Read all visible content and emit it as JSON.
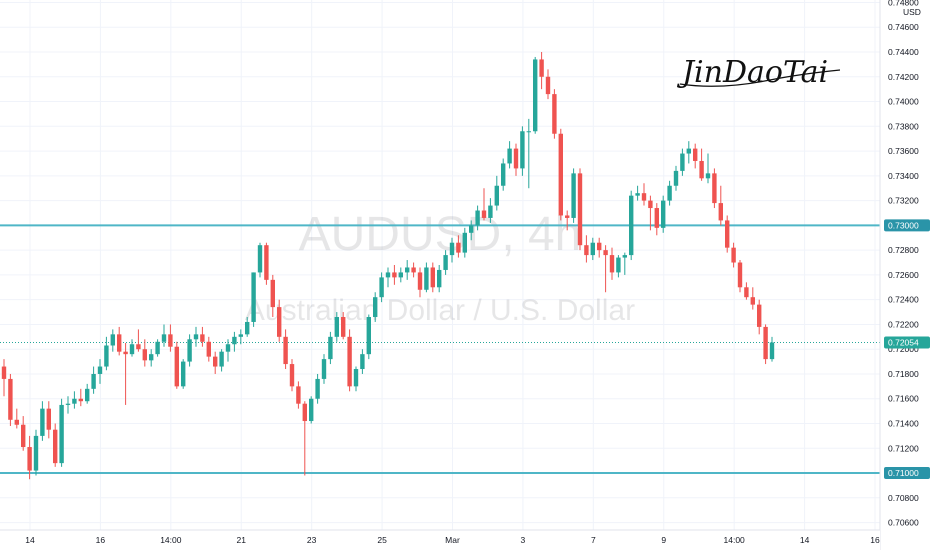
{
  "chart_data": {
    "type": "candlestick",
    "watermark_symbol": "AUDUSD, 4h",
    "watermark_description": "Australian Dollar / U.S. Dollar",
    "signature": "JinDaoTai",
    "currency": "USD",
    "y_axis": {
      "range": [
        0.7054,
        0.7482
      ],
      "ticks": [
        "0.70600",
        "0.70800",
        "0.71000",
        "0.71200",
        "0.71400",
        "0.71600",
        "0.71800",
        "0.72000",
        "0.72200",
        "0.72400",
        "0.72600",
        "0.72800",
        "0.73000",
        "0.73200",
        "0.73400",
        "0.73600",
        "0.73800",
        "0.74000",
        "0.74200",
        "0.74400",
        "0.74600",
        "0.74800"
      ]
    },
    "x_axis": {
      "labels": [
        "14",
        "16",
        "14:00",
        "21",
        "23",
        "25",
        "Mar",
        "3",
        "7",
        "9",
        "14:00",
        "14",
        "16"
      ]
    },
    "horizontal_levels": [
      {
        "value": 0.73,
        "label": "0.73000"
      },
      {
        "value": 0.71,
        "label": "0.71000"
      }
    ],
    "last_price": {
      "value": 0.72054,
      "label": "0.72054"
    },
    "candles": [
      [
        0.7186,
        0.7192,
        0.7162,
        0.7176
      ],
      [
        0.7176,
        0.718,
        0.7138,
        0.7143
      ],
      [
        0.7143,
        0.7152,
        0.7136,
        0.7139
      ],
      [
        0.7139,
        0.7146,
        0.7118,
        0.7121
      ],
      [
        0.7121,
        0.713,
        0.7095,
        0.7102
      ],
      [
        0.7102,
        0.7135,
        0.7098,
        0.713
      ],
      [
        0.713,
        0.7158,
        0.7126,
        0.7152
      ],
      [
        0.7152,
        0.7158,
        0.7128,
        0.7135
      ],
      [
        0.7135,
        0.714,
        0.7105,
        0.7108
      ],
      [
        0.7108,
        0.716,
        0.7105,
        0.7155
      ],
      [
        0.7155,
        0.7162,
        0.7148,
        0.7156
      ],
      [
        0.7156,
        0.7166,
        0.7152,
        0.716
      ],
      [
        0.716,
        0.7168,
        0.7154,
        0.7158
      ],
      [
        0.7158,
        0.7172,
        0.7156,
        0.7168
      ],
      [
        0.7168,
        0.7186,
        0.7164,
        0.718
      ],
      [
        0.718,
        0.7192,
        0.7172,
        0.7186
      ],
      [
        0.7186,
        0.721,
        0.7183,
        0.7203
      ],
      [
        0.7203,
        0.7216,
        0.7198,
        0.7212
      ],
      [
        0.7212,
        0.7218,
        0.7195,
        0.7198
      ],
      [
        0.7198,
        0.7205,
        0.7155,
        0.7196
      ],
      [
        0.7196,
        0.7208,
        0.7194,
        0.7204
      ],
      [
        0.7204,
        0.7216,
        0.7198,
        0.72
      ],
      [
        0.72,
        0.7208,
        0.7186,
        0.7191
      ],
      [
        0.7191,
        0.72,
        0.7186,
        0.7196
      ],
      [
        0.7196,
        0.7208,
        0.7194,
        0.7206
      ],
      [
        0.7206,
        0.722,
        0.7202,
        0.7212
      ],
      [
        0.7212,
        0.722,
        0.7198,
        0.7202
      ],
      [
        0.7202,
        0.7206,
        0.7168,
        0.717
      ],
      [
        0.717,
        0.7192,
        0.7168,
        0.719
      ],
      [
        0.719,
        0.7212,
        0.7186,
        0.7208
      ],
      [
        0.7208,
        0.7218,
        0.7202,
        0.7212
      ],
      [
        0.7212,
        0.7218,
        0.7202,
        0.7206
      ],
      [
        0.7206,
        0.721,
        0.719,
        0.7194
      ],
      [
        0.7194,
        0.7198,
        0.718,
        0.7186
      ],
      [
        0.7186,
        0.72,
        0.7182,
        0.7198
      ],
      [
        0.7198,
        0.7208,
        0.719,
        0.7204
      ],
      [
        0.7204,
        0.7214,
        0.7198,
        0.721
      ],
      [
        0.721,
        0.7216,
        0.7204,
        0.7212
      ],
      [
        0.7212,
        0.7226,
        0.721,
        0.7222
      ],
      [
        0.7222,
        0.7262,
        0.7218,
        0.7262
      ],
      [
        0.7262,
        0.7286,
        0.7258,
        0.7284
      ],
      [
        0.7284,
        0.7286,
        0.7252,
        0.7256
      ],
      [
        0.7256,
        0.726,
        0.7226,
        0.7234
      ],
      [
        0.7234,
        0.724,
        0.7206,
        0.721
      ],
      [
        0.721,
        0.7216,
        0.7184,
        0.7188
      ],
      [
        0.7188,
        0.7192,
        0.7166,
        0.717
      ],
      [
        0.717,
        0.7174,
        0.7152,
        0.7156
      ],
      [
        0.7156,
        0.7158,
        0.7098,
        0.7142
      ],
      [
        0.7142,
        0.7162,
        0.714,
        0.716
      ],
      [
        0.716,
        0.718,
        0.7156,
        0.7176
      ],
      [
        0.7176,
        0.7196,
        0.7172,
        0.7192
      ],
      [
        0.7192,
        0.7214,
        0.7188,
        0.721
      ],
      [
        0.721,
        0.723,
        0.7206,
        0.7226
      ],
      [
        0.7226,
        0.723,
        0.7208,
        0.721
      ],
      [
        0.721,
        0.7216,
        0.7166,
        0.717
      ],
      [
        0.717,
        0.7186,
        0.7166,
        0.7184
      ],
      [
        0.7184,
        0.72,
        0.718,
        0.7196
      ],
      [
        0.7196,
        0.7228,
        0.7192,
        0.7226
      ],
      [
        0.7226,
        0.7246,
        0.7222,
        0.7242
      ],
      [
        0.7242,
        0.7262,
        0.7238,
        0.7258
      ],
      [
        0.7258,
        0.7266,
        0.725,
        0.7262
      ],
      [
        0.7262,
        0.7268,
        0.7252,
        0.7258
      ],
      [
        0.7258,
        0.7266,
        0.7254,
        0.7262
      ],
      [
        0.7262,
        0.7272,
        0.7256,
        0.7266
      ],
      [
        0.7266,
        0.727,
        0.7258,
        0.7262
      ],
      [
        0.7262,
        0.7266,
        0.7242,
        0.7248
      ],
      [
        0.7248,
        0.727,
        0.7246,
        0.7266
      ],
      [
        0.7266,
        0.727,
        0.7246,
        0.725
      ],
      [
        0.725,
        0.7268,
        0.7246,
        0.7264
      ],
      [
        0.7264,
        0.728,
        0.726,
        0.7276
      ],
      [
        0.7276,
        0.729,
        0.727,
        0.7286
      ],
      [
        0.7286,
        0.7292,
        0.7274,
        0.7278
      ],
      [
        0.7278,
        0.7298,
        0.7274,
        0.7294
      ],
      [
        0.7294,
        0.7304,
        0.7288,
        0.73
      ],
      [
        0.73,
        0.7316,
        0.7296,
        0.7312
      ],
      [
        0.7312,
        0.733,
        0.7304,
        0.7306
      ],
      [
        0.7306,
        0.7322,
        0.7302,
        0.7316
      ],
      [
        0.7316,
        0.734,
        0.7312,
        0.7332
      ],
      [
        0.7332,
        0.7354,
        0.7328,
        0.735
      ],
      [
        0.735,
        0.7368,
        0.7346,
        0.7362
      ],
      [
        0.7362,
        0.7366,
        0.734,
        0.7346
      ],
      [
        0.7346,
        0.738,
        0.734,
        0.7376
      ],
      [
        0.7376,
        0.7386,
        0.733,
        0.7376
      ],
      [
        0.7376,
        0.7436,
        0.7374,
        0.7434
      ],
      [
        0.7434,
        0.744,
        0.741,
        0.742
      ],
      [
        0.742,
        0.7426,
        0.7402,
        0.7406
      ],
      [
        0.7406,
        0.741,
        0.737,
        0.7374
      ],
      [
        0.7374,
        0.7378,
        0.7304,
        0.7308
      ],
      [
        0.7308,
        0.7312,
        0.7296,
        0.7306
      ],
      [
        0.7306,
        0.7346,
        0.7302,
        0.7342
      ],
      [
        0.7342,
        0.7346,
        0.728,
        0.7284
      ],
      [
        0.7284,
        0.7292,
        0.727,
        0.7276
      ],
      [
        0.7276,
        0.729,
        0.7272,
        0.7286
      ],
      [
        0.7286,
        0.729,
        0.7274,
        0.728
      ],
      [
        0.728,
        0.7284,
        0.7246,
        0.7276
      ],
      [
        0.7276,
        0.7282,
        0.7256,
        0.7262
      ],
      [
        0.7262,
        0.7276,
        0.7258,
        0.7274
      ],
      [
        0.7274,
        0.7278,
        0.726,
        0.7276
      ],
      [
        0.7276,
        0.7328,
        0.7272,
        0.7324
      ],
      [
        0.7324,
        0.7332,
        0.732,
        0.7326
      ],
      [
        0.7326,
        0.7334,
        0.7316,
        0.732
      ],
      [
        0.732,
        0.7324,
        0.7296,
        0.7314
      ],
      [
        0.7314,
        0.7318,
        0.7292,
        0.7298
      ],
      [
        0.7298,
        0.7324,
        0.7294,
        0.732
      ],
      [
        0.732,
        0.7336,
        0.7316,
        0.7332
      ],
      [
        0.7332,
        0.7348,
        0.7328,
        0.7344
      ],
      [
        0.7344,
        0.7362,
        0.734,
        0.7358
      ],
      [
        0.7358,
        0.7368,
        0.735,
        0.7362
      ],
      [
        0.7362,
        0.7366,
        0.7346,
        0.7352
      ],
      [
        0.7352,
        0.7362,
        0.7336,
        0.7338
      ],
      [
        0.7338,
        0.7358,
        0.7334,
        0.7342
      ],
      [
        0.7342,
        0.7346,
        0.7314,
        0.7318
      ],
      [
        0.7318,
        0.7332,
        0.73,
        0.7304
      ],
      [
        0.7304,
        0.7308,
        0.7278,
        0.7282
      ],
      [
        0.7282,
        0.7286,
        0.7266,
        0.727
      ],
      [
        0.727,
        0.7272,
        0.7246,
        0.725
      ],
      [
        0.725,
        0.7254,
        0.724,
        0.7242
      ],
      [
        0.7242,
        0.725,
        0.7232,
        0.7236
      ],
      [
        0.7236,
        0.724,
        0.7212,
        0.7218
      ],
      [
        0.7218,
        0.722,
        0.7188,
        0.7192
      ],
      [
        0.7192,
        0.721,
        0.719,
        0.72054
      ]
    ]
  },
  "colors": {
    "up": "#26a69a",
    "down": "#ef5350",
    "level_line": "#4fb6c7",
    "level_tag": "#2a94a8",
    "last_price_tag": "#26a69a",
    "grid": "#f0f3fa"
  }
}
